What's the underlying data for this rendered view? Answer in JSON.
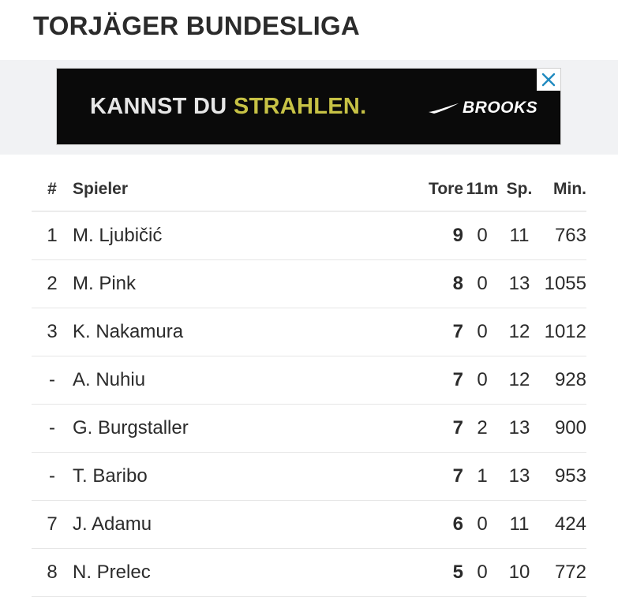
{
  "page": {
    "title": "TORJÄGER BUNDESLIGA"
  },
  "ad": {
    "text_main": "KANNST DU ",
    "text_highlight": "STRAHLEN.",
    "brand": "BROOKS",
    "close_color": "#1f8ac0"
  },
  "table": {
    "headers": {
      "rank": "#",
      "player": "Spieler",
      "goals": "Tore",
      "penalties": "11m",
      "games": "Sp.",
      "minutes": "Min."
    },
    "rows": [
      {
        "rank": "1",
        "player": "M. Ljubičić",
        "goals": "9",
        "penalties": "0",
        "games": "11",
        "minutes": "763"
      },
      {
        "rank": "2",
        "player": "M. Pink",
        "goals": "8",
        "penalties": "0",
        "games": "13",
        "minutes": "1055"
      },
      {
        "rank": "3",
        "player": "K. Nakamura",
        "goals": "7",
        "penalties": "0",
        "games": "12",
        "minutes": "1012"
      },
      {
        "rank": "-",
        "player": "A. Nuhiu",
        "goals": "7",
        "penalties": "0",
        "games": "12",
        "minutes": "928"
      },
      {
        "rank": "-",
        "player": "G. Burgstaller",
        "goals": "7",
        "penalties": "2",
        "games": "13",
        "minutes": "900"
      },
      {
        "rank": "-",
        "player": "T. Baribo",
        "goals": "7",
        "penalties": "1",
        "games": "13",
        "minutes": "953"
      },
      {
        "rank": "7",
        "player": "J. Adamu",
        "goals": "6",
        "penalties": "0",
        "games": "11",
        "minutes": "424"
      },
      {
        "rank": "8",
        "player": "N. Prelec",
        "goals": "5",
        "penalties": "0",
        "games": "10",
        "minutes": "772"
      }
    ]
  }
}
